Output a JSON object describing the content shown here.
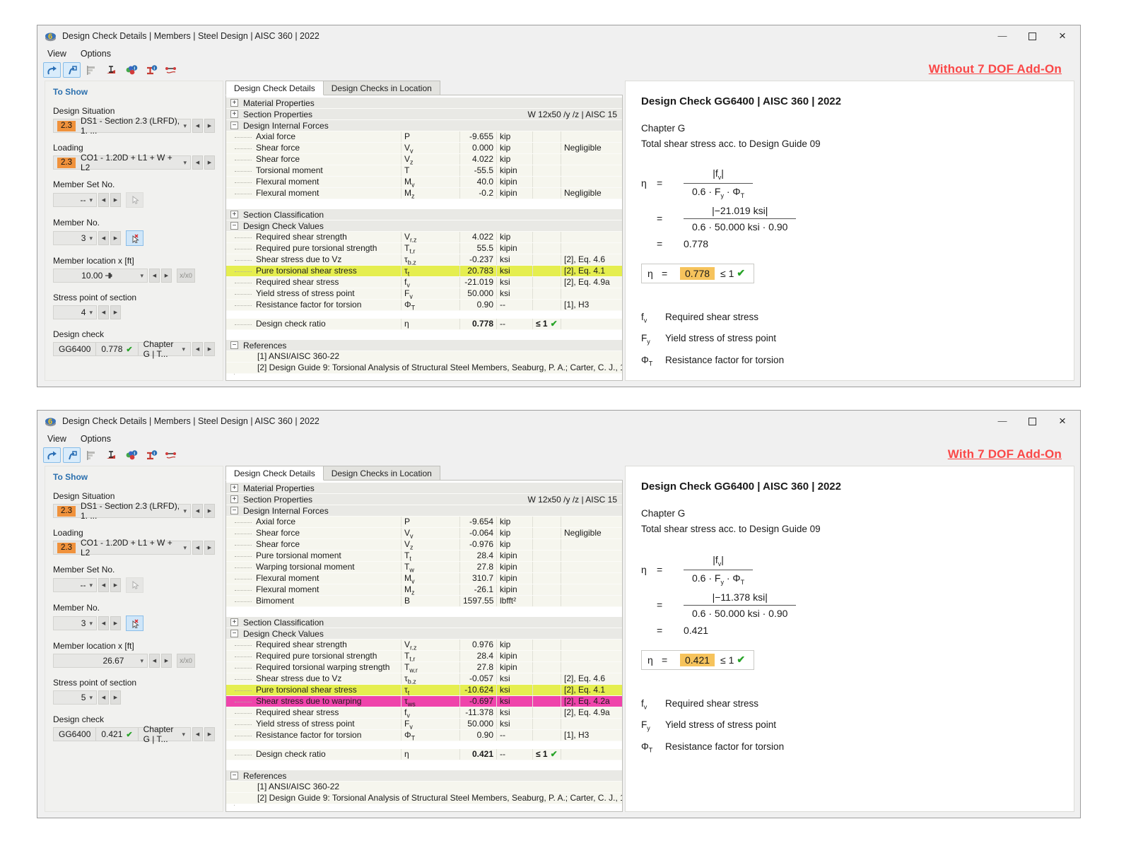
{
  "icons": {
    "check": "✔",
    "dropdown": "▾",
    "prev": "◀",
    "next": "▶",
    "minimize": "—",
    "close": "×",
    "expand": "+",
    "collapse": "−",
    "toolbar_names": [
      "jump-back-icon",
      "jump-forward-icon",
      "result-bars-icon",
      "stress-point-icon",
      "color-legend-info-icon",
      "section-info-icon",
      "member-diagram-icon"
    ]
  },
  "windows": [
    {
      "annotation": "Without 7 DOF Add-On",
      "title": "Design Check Details | Members | Steel Design | AISC 360 | 2022",
      "menu": {
        "view": "View",
        "options": "Options"
      },
      "sidebar": {
        "header": "To Show",
        "design_situation": {
          "label": "Design Situation",
          "badge": "2.3",
          "value": "DS1 - Section 2.3 (LRFD), 1. ..."
        },
        "loading": {
          "label": "Loading",
          "badge": "2.3",
          "value": "CO1 - 1.20D + L1 + W + L2"
        },
        "member_set": {
          "label": "Member Set No.",
          "value": "--"
        },
        "member": {
          "label": "Member No.",
          "value": "3"
        },
        "location": {
          "label": "Member location x [ft]",
          "value": "10.00"
        },
        "xx0": {
          "text": "x/x",
          "sub": "0"
        },
        "stress_point": {
          "label": "Stress point of section",
          "value": "4"
        },
        "design_check": {
          "label": "Design check",
          "code": "GG6400",
          "ratio": "0.778",
          "chapter": "Chapter G | T..."
        }
      },
      "tabs": {
        "active": "Design Check Details",
        "inactive": "Design Checks in Location"
      },
      "table_rows": [
        {
          "t": "group",
          "exp": "+",
          "label": "Material Properties"
        },
        {
          "t": "group",
          "exp": "+",
          "label": "Section Properties",
          "right": "W 12x50 /y /z | AISC 15"
        },
        {
          "t": "group",
          "exp": "-",
          "label": "Design Internal Forces"
        },
        {
          "t": "item",
          "label": "Axial force",
          "sym": "P",
          "val": "-9.655",
          "unit": "kip"
        },
        {
          "t": "item",
          "label": "Shear force",
          "sym": "V",
          "sub": "y",
          "val": "0.000",
          "unit": "kip",
          "ref": "Negligible"
        },
        {
          "t": "item",
          "label": "Shear force",
          "sym": "V",
          "sub": "z",
          "val": "4.022",
          "unit": "kip"
        },
        {
          "t": "item",
          "label": "Torsional moment",
          "sym": "T",
          "val": "-55.5",
          "unit": "kipin"
        },
        {
          "t": "item",
          "label": "Flexural moment",
          "sym": "M",
          "sub": "y",
          "val": "40.0",
          "unit": "kipin"
        },
        {
          "t": "item",
          "label": "Flexural moment",
          "sym": "M",
          "sub": "z",
          "val": "-0.2",
          "unit": "kipin",
          "ref": "Negligible"
        },
        {
          "t": "spacer",
          "h": 14
        },
        {
          "t": "group",
          "exp": "+",
          "label": "Section Classification"
        },
        {
          "t": "group",
          "exp": "-",
          "label": "Design Check Values"
        },
        {
          "t": "item",
          "label": "Required shear strength",
          "sym": "V",
          "sub": "r,z",
          "val": "4.022",
          "unit": "kip"
        },
        {
          "t": "item",
          "label": "Required pure torsional strength",
          "sym": "T",
          "sub": "t,r",
          "val": "55.5",
          "unit": "kipin"
        },
        {
          "t": "item",
          "label": "Shear stress due to Vz",
          "sym": "τ",
          "sub": "b,z",
          "val": "-0.237",
          "unit": "ksi",
          "ref": "[2], Eq. 4.6"
        },
        {
          "t": "item",
          "label": "Pure torsional shear stress",
          "sym": "τ",
          "sub": "t",
          "val": "20.783",
          "unit": "ksi",
          "ref": "[2], Eq. 4.1",
          "hl": "yellow"
        },
        {
          "t": "item",
          "label": "Required shear stress",
          "sym": "f",
          "sub": "v",
          "val": "-21.019",
          "unit": "ksi",
          "ref": "[2], Eq. 4.9a"
        },
        {
          "t": "item",
          "label": "Yield stress of stress point",
          "sym": "F",
          "sub": "y",
          "val": "50.000",
          "unit": "ksi"
        },
        {
          "t": "item",
          "label": "Resistance factor for torsion",
          "sym": "Φ",
          "sub": "T",
          "val": "0.90",
          "unit": "--",
          "ref": "[1], H3"
        },
        {
          "t": "spacer",
          "h": 11
        },
        {
          "t": "item",
          "label": "Design check ratio",
          "sym": "η",
          "val": "0.778",
          "unit": "--",
          "crit": "≤ 1",
          "check": true,
          "bold": true
        },
        {
          "t": "spacer",
          "h": 14
        },
        {
          "t": "group",
          "exp": "-",
          "label": "References"
        },
        {
          "t": "ref",
          "label": "[1]  ANSI/AISC 360-22"
        },
        {
          "t": "ref",
          "label": "[2]  Design Guide 9: Torsional Analysis of Structural Steel Members, Seaburg, P. A.; Carter, C. J., 1997"
        }
      ],
      "detail": {
        "title": "Design Check GG6400 | AISC 360 | 2022",
        "chapter": "Chapter G",
        "subtitle": "Total shear stress acc. to Design Guide 09",
        "formula": {
          "lhs": "η",
          "eq": "=",
          "num_pre": "|f",
          "num_sub": "v",
          "num_post": "|",
          "den_a": "0.6  ·  F",
          "den_a_sub": "y",
          "den_b": "  ·  Φ",
          "den_b_sub": "T",
          "num2": "|−21.019 ksi|",
          "den2": "0.6  ·  50.000 ksi  ·  0.90",
          "result": "0.778"
        },
        "resultbox": {
          "sym": "η",
          "eq": "=",
          "value": "0.778",
          "criterion": "≤ 1"
        },
        "legend": [
          {
            "base": "f",
            "sub": "v",
            "text": "Required shear stress"
          },
          {
            "base": "F",
            "sub": "y",
            "text": "Yield stress of stress point"
          },
          {
            "base": "Φ",
            "sub": "T",
            "text": "Resistance factor for torsion"
          }
        ]
      }
    },
    {
      "annotation": "With 7 DOF Add-On",
      "title": "Design Check Details | Members | Steel Design | AISC 360 | 2022",
      "menu": {
        "view": "View",
        "options": "Options"
      },
      "sidebar": {
        "header": "To Show",
        "design_situation": {
          "label": "Design Situation",
          "badge": "2.3",
          "value": "DS1 - Section 2.3 (LRFD), 1. ..."
        },
        "loading": {
          "label": "Loading",
          "badge": "2.3",
          "value": "CO1 - 1.20D + L1 + W + L2"
        },
        "member_set": {
          "label": "Member Set No.",
          "value": "--"
        },
        "member": {
          "label": "Member No.",
          "value": "3"
        },
        "location": {
          "label": "Member location x [ft]",
          "value": "26.67"
        },
        "xx0": {
          "text": "x/x",
          "sub": "0"
        },
        "stress_point": {
          "label": "Stress point of section",
          "value": "5"
        },
        "design_check": {
          "label": "Design check",
          "code": "GG6400",
          "ratio": "0.421",
          "chapter": "Chapter G | T..."
        }
      },
      "tabs": {
        "active": "Design Check Details",
        "inactive": "Design Checks in Location"
      },
      "table_rows": [
        {
          "t": "group",
          "exp": "+",
          "label": "Material Properties"
        },
        {
          "t": "group",
          "exp": "+",
          "label": "Section Properties",
          "right": "W 12x50 /y /z | AISC 15"
        },
        {
          "t": "group",
          "exp": "-",
          "label": "Design Internal Forces"
        },
        {
          "t": "item",
          "label": "Axial force",
          "sym": "P",
          "val": "-9.654",
          "unit": "kip"
        },
        {
          "t": "item",
          "label": "Shear force",
          "sym": "V",
          "sub": "y",
          "val": "-0.064",
          "unit": "kip",
          "ref": "Negligible"
        },
        {
          "t": "item",
          "label": "Shear force",
          "sym": "V",
          "sub": "z",
          "val": "-0.976",
          "unit": "kip"
        },
        {
          "t": "item",
          "label": "Pure torsional moment",
          "sym": "T",
          "sub": "t",
          "val": "28.4",
          "unit": "kipin"
        },
        {
          "t": "item",
          "label": "Warping torsional moment",
          "sym": "T",
          "sub": "w",
          "val": "27.8",
          "unit": "kipin"
        },
        {
          "t": "item",
          "label": "Flexural moment",
          "sym": "M",
          "sub": "y",
          "val": "310.7",
          "unit": "kipin"
        },
        {
          "t": "item",
          "label": "Flexural moment",
          "sym": "M",
          "sub": "z",
          "val": "-26.1",
          "unit": "kipin"
        },
        {
          "t": "item",
          "label": "Bimoment",
          "sym": "B",
          "val": "1597.55",
          "unit": "lbfft²"
        },
        {
          "t": "spacer",
          "h": 14
        },
        {
          "t": "group",
          "exp": "+",
          "label": "Section Classification"
        },
        {
          "t": "group",
          "exp": "-",
          "label": "Design Check Values"
        },
        {
          "t": "item",
          "label": "Required shear strength",
          "sym": "V",
          "sub": "r,z",
          "val": "0.976",
          "unit": "kip"
        },
        {
          "t": "item",
          "label": "Required pure torsional strength",
          "sym": "T",
          "sub": "t,r",
          "val": "28.4",
          "unit": "kipin"
        },
        {
          "t": "item",
          "label": "Required torsional warping strength",
          "sym": "T",
          "sub": "w,r",
          "val": "27.8",
          "unit": "kipin"
        },
        {
          "t": "item",
          "label": "Shear stress due to Vz",
          "sym": "τ",
          "sub": "b,z",
          "val": "-0.057",
          "unit": "ksi",
          "ref": "[2], Eq. 4.6"
        },
        {
          "t": "item",
          "label": "Pure torsional shear stress",
          "sym": "τ",
          "sub": "t",
          "val": "-10.624",
          "unit": "ksi",
          "ref": "[2], Eq. 4.1",
          "hl": "yellow"
        },
        {
          "t": "item",
          "label": "Shear stress due to warping",
          "sym": "τ",
          "sub": "ws",
          "val": "-0.697",
          "unit": "ksi",
          "ref": "[2], Eq. 4.2a",
          "hl": "pink"
        },
        {
          "t": "item",
          "label": "Required shear stress",
          "sym": "f",
          "sub": "v",
          "val": "-11.378",
          "unit": "ksi",
          "ref": "[2], Eq. 4.9a"
        },
        {
          "t": "item",
          "label": "Yield stress of stress point",
          "sym": "F",
          "sub": "y",
          "val": "50.000",
          "unit": "ksi"
        },
        {
          "t": "item",
          "label": "Resistance factor for torsion",
          "sym": "Φ",
          "sub": "T",
          "val": "0.90",
          "unit": "--",
          "ref": "[1], H3"
        },
        {
          "t": "spacer",
          "h": 11
        },
        {
          "t": "item",
          "label": "Design check ratio",
          "sym": "η",
          "val": "0.421",
          "unit": "--",
          "crit": "≤ 1",
          "check": true,
          "bold": true
        },
        {
          "t": "spacer",
          "h": 14
        },
        {
          "t": "group",
          "exp": "-",
          "label": "References"
        },
        {
          "t": "ref",
          "label": "[1]  ANSI/AISC 360-22"
        },
        {
          "t": "ref",
          "label": "[2]  Design Guide 9: Torsional Analysis of Structural Steel Members, Seaburg, P. A.; Carter, C. J., 1997"
        }
      ],
      "detail": {
        "title": "Design Check GG6400 | AISC 360 | 2022",
        "chapter": "Chapter G",
        "subtitle": "Total shear stress acc. to Design Guide 09",
        "formula": {
          "lhs": "η",
          "eq": "=",
          "num_pre": "|f",
          "num_sub": "v",
          "num_post": "|",
          "den_a": "0.6  ·  F",
          "den_a_sub": "y",
          "den_b": "  ·  Φ",
          "den_b_sub": "T",
          "num2": "|−11.378 ksi|",
          "den2": "0.6  ·  50.000 ksi  ·  0.90",
          "result": "0.421"
        },
        "resultbox": {
          "sym": "η",
          "eq": "=",
          "value": "0.421",
          "criterion": "≤ 1"
        },
        "legend": [
          {
            "base": "f",
            "sub": "v",
            "text": "Required shear stress"
          },
          {
            "base": "F",
            "sub": "y",
            "text": "Yield stress of stress point"
          },
          {
            "base": "Φ",
            "sub": "T",
            "text": "Resistance factor for torsion"
          }
        ]
      }
    }
  ]
}
